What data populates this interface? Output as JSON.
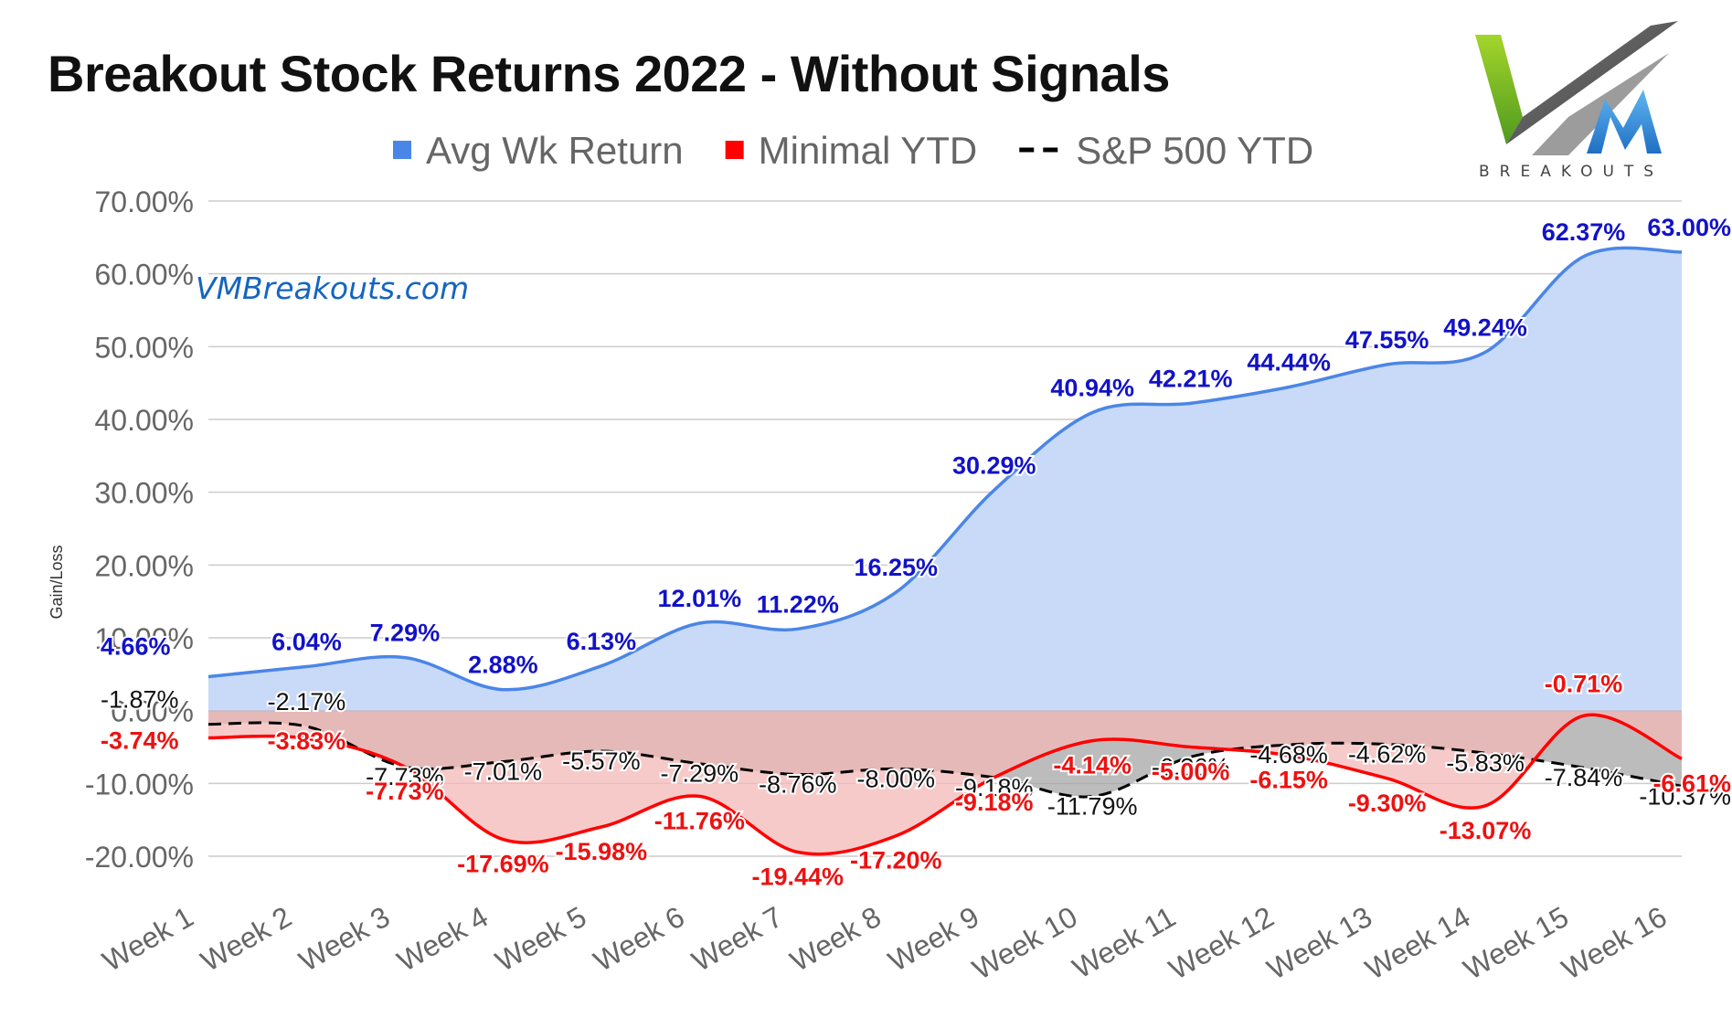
{
  "chart_data": {
    "type": "area",
    "title": "Breakout Stock Returns 2022 - Without Signals",
    "watermark": "VMBreakouts.com",
    "logo_text": "BREAKOUTS",
    "ylabel": "Gain/Loss",
    "xlabel": "",
    "ylim": [
      -20,
      70
    ],
    "yticks": [
      -20,
      -10,
      0,
      10,
      20,
      30,
      40,
      50,
      60,
      70
    ],
    "ytick_labels": [
      "-20.00%",
      "-10.00%",
      "0.00%",
      "10.00%",
      "20.00%",
      "30.00%",
      "40.00%",
      "50.00%",
      "60.00%",
      "70.00%"
    ],
    "grid": true,
    "legend_position": "top",
    "categories": [
      "Week 1",
      "Week 2",
      "Week 3",
      "Week 4",
      "Week 5",
      "Week 6",
      "Week 7",
      "Week 8",
      "Week 9",
      "Week 10",
      "Week 11",
      "Week 12",
      "Week 13",
      "Week 14",
      "Week 15",
      "Week 16"
    ],
    "series": [
      {
        "name": "Avg Wk Return",
        "color": "#4a86e8",
        "fill": "#c9daf8",
        "values": [
          4.66,
          6.04,
          7.29,
          2.88,
          6.13,
          12.01,
          11.22,
          16.25,
          30.29,
          40.94,
          42.21,
          44.44,
          47.55,
          49.24,
          62.37,
          63.0
        ],
        "labels": [
          "4.66%",
          "6.04%",
          "7.29%",
          "2.88%",
          "6.13%",
          "12.01%",
          "11.22%",
          "16.25%",
          "30.29%",
          "40.94%",
          "42.21%",
          "44.44%",
          "47.55%",
          "49.24%",
          "62.37%",
          "63.00%"
        ]
      },
      {
        "name": "Minimal YTD",
        "color": "#ff0000",
        "fill": "#f4b8b8",
        "values": [
          -3.74,
          -3.83,
          -7.73,
          -17.69,
          -15.98,
          -11.76,
          -19.44,
          -17.2,
          -9.18,
          -4.14,
          -5.0,
          -6.15,
          -9.3,
          -13.07,
          -0.71,
          -6.61
        ],
        "labels": [
          "-3.74%",
          "-3.83%",
          "-7.73%",
          "-17.69%",
          "-15.98%",
          "-11.76%",
          "-19.44%",
          "-17.20%",
          "-9.18%",
          "-4.14%",
          "-5.00%",
          "-6.15%",
          "-9.30%",
          "-13.07%",
          "-0.71%",
          "-6.61%"
        ]
      },
      {
        "name": "S&P 500 YTD",
        "color": "#000000",
        "fill": "#a6a6a6",
        "dashed": true,
        "values": [
          -1.87,
          -2.17,
          -7.73,
          -7.01,
          -5.57,
          -7.29,
          -8.76,
          -8.0,
          -9.18,
          -11.79,
          -6.36,
          -4.68,
          -4.62,
          -5.83,
          -7.84,
          -10.37
        ],
        "labels": [
          "-1.87%",
          "-2.17%",
          "-7.73%",
          "-7.01%",
          "-5.57%",
          "-7.29%",
          "-8.76%",
          "-8.00%",
          "-9.18%",
          "-11.79%",
          "-6.36%",
          "-4.68%",
          "-4.62%",
          "-5.83%",
          "-7.84%",
          "-10.37%"
        ]
      }
    ]
  }
}
